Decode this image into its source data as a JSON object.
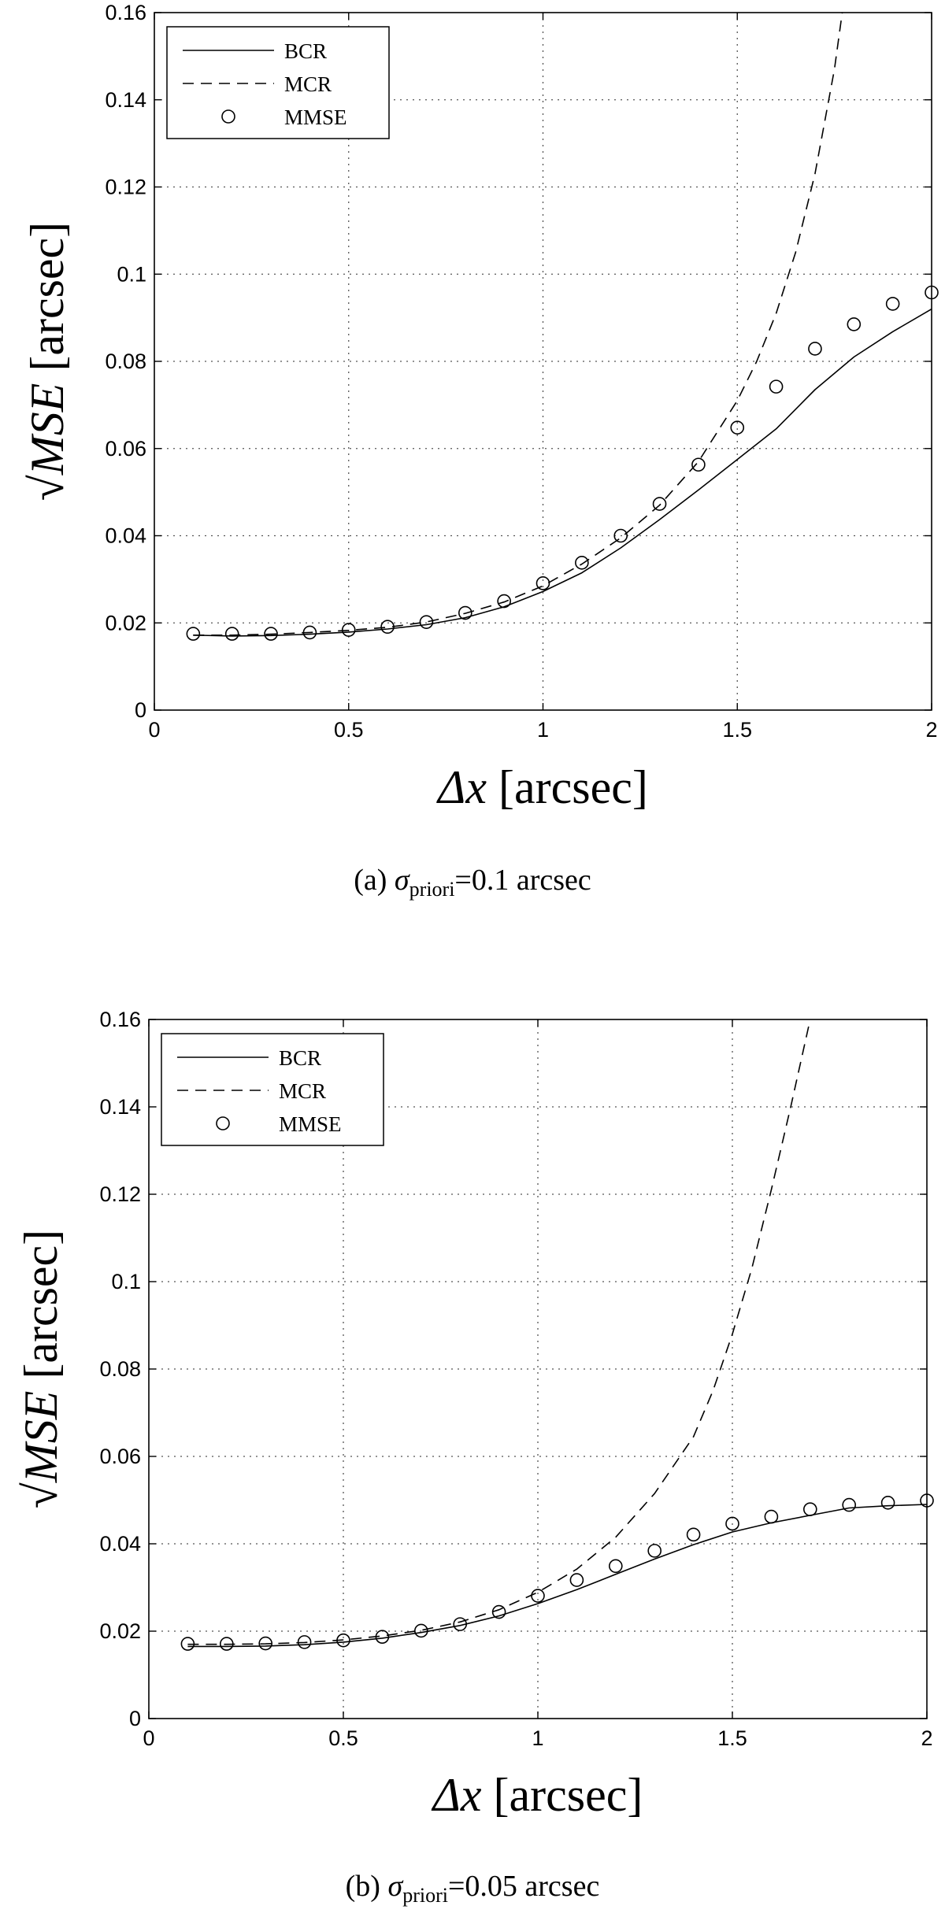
{
  "chart_data": [
    {
      "type": "line",
      "title": "",
      "caption": {
        "label": "(a)",
        "symbol": "σ",
        "subscript": "priori",
        "value": "=0.1 arcsec"
      },
      "xlabel": {
        "symbol": "Δx",
        "unit": "[arcsec]"
      },
      "ylabel": {
        "symbol": "√MSE",
        "unit": "[arcsec]"
      },
      "xlim": [
        0,
        2
      ],
      "ylim": [
        0,
        0.16
      ],
      "xticks": [
        0,
        0.5,
        1,
        1.5,
        2
      ],
      "xtick_labels": [
        "0",
        "0.5",
        "1",
        "1.5",
        "2"
      ],
      "yticks": [
        0,
        0.02,
        0.04,
        0.06,
        0.08,
        0.1,
        0.12,
        0.14,
        0.16
      ],
      "ytick_labels": [
        "0",
        "0.02",
        "0.04",
        "0.06",
        "0.08",
        "0.1",
        "0.12",
        "0.14",
        "0.16"
      ],
      "grid": true,
      "legend": {
        "position": "top-left",
        "entries": [
          "BCR",
          "MCR",
          "MMSE"
        ]
      },
      "series": [
        {
          "name": "BCR",
          "style": "solid",
          "x": [
            0.1,
            0.2,
            0.3,
            0.4,
            0.5,
            0.6,
            0.7,
            0.8,
            0.9,
            1.0,
            1.1,
            1.2,
            1.3,
            1.4,
            1.5,
            1.6,
            1.7,
            1.8,
            1.9,
            2.0
          ],
          "y": [
            0.0172,
            0.017,
            0.0171,
            0.0174,
            0.0179,
            0.0186,
            0.0196,
            0.0212,
            0.0237,
            0.0272,
            0.0315,
            0.0372,
            0.0437,
            0.0505,
            0.0575,
            0.0645,
            0.0735,
            0.081,
            0.0868,
            0.092
          ]
        },
        {
          "name": "MCR",
          "style": "dashed",
          "x": [
            0.1,
            0.2,
            0.3,
            0.4,
            0.5,
            0.6,
            0.7,
            0.8,
            0.9,
            1.0,
            1.1,
            1.2,
            1.3,
            1.4,
            1.5,
            1.55,
            1.6,
            1.65,
            1.7,
            1.75,
            1.77
          ],
          "y": [
            0.0172,
            0.0172,
            0.0174,
            0.0178,
            0.0183,
            0.019,
            0.0202,
            0.0222,
            0.0248,
            0.0285,
            0.0335,
            0.0395,
            0.047,
            0.057,
            0.071,
            0.08,
            0.091,
            0.105,
            0.123,
            0.147,
            0.16
          ]
        },
        {
          "name": "MMSE",
          "style": "markers",
          "x": [
            0.1,
            0.2,
            0.3,
            0.4,
            0.5,
            0.6,
            0.7,
            0.8,
            0.9,
            1.0,
            1.1,
            1.2,
            1.3,
            1.4,
            1.5,
            1.6,
            1.7,
            1.8,
            1.9,
            2.0
          ],
          "y": [
            0.0175,
            0.0175,
            0.0175,
            0.0178,
            0.0184,
            0.0191,
            0.0202,
            0.0223,
            0.025,
            0.0291,
            0.0338,
            0.04,
            0.0473,
            0.0563,
            0.0648,
            0.0742,
            0.0829,
            0.0885,
            0.0932,
            0.0958
          ]
        }
      ]
    },
    {
      "type": "line",
      "title": "",
      "caption": {
        "label": "(b)",
        "symbol": "σ",
        "subscript": "priori",
        "value": "=0.05 arcsec"
      },
      "xlabel": {
        "symbol": "Δx",
        "unit": "[arcsec]"
      },
      "ylabel": {
        "symbol": "√MSE",
        "unit": "[arcsec]"
      },
      "xlim": [
        0,
        2
      ],
      "ylim": [
        0,
        0.16
      ],
      "xticks": [
        0,
        0.5,
        1,
        1.5,
        2
      ],
      "xtick_labels": [
        "0",
        "0.5",
        "1",
        "1.5",
        "2"
      ],
      "yticks": [
        0,
        0.02,
        0.04,
        0.06,
        0.08,
        0.1,
        0.12,
        0.14,
        0.16
      ],
      "ytick_labels": [
        "0",
        "0.02",
        "0.04",
        "0.06",
        "0.08",
        "0.1",
        "0.12",
        "0.14",
        "0.16"
      ],
      "grid": true,
      "legend": {
        "position": "top-left",
        "entries": [
          "BCR",
          "MCR",
          "MMSE"
        ]
      },
      "series": [
        {
          "name": "BCR",
          "style": "solid",
          "x": [
            0.1,
            0.2,
            0.3,
            0.4,
            0.5,
            0.6,
            0.7,
            0.8,
            0.9,
            1.0,
            1.1,
            1.2,
            1.3,
            1.4,
            1.5,
            1.6,
            1.7,
            1.8,
            1.9,
            2.0
          ],
          "y": [
            0.0165,
            0.0165,
            0.0166,
            0.0169,
            0.0175,
            0.0184,
            0.0197,
            0.0213,
            0.0235,
            0.0263,
            0.0295,
            0.033,
            0.0365,
            0.0398,
            0.0427,
            0.0448,
            0.0465,
            0.0482,
            0.0487,
            0.049
          ]
        },
        {
          "name": "MCR",
          "style": "dashed",
          "x": [
            0.1,
            0.2,
            0.3,
            0.4,
            0.5,
            0.6,
            0.7,
            0.8,
            0.9,
            1.0,
            1.1,
            1.2,
            1.3,
            1.4,
            1.45,
            1.5,
            1.55,
            1.6,
            1.65,
            1.7
          ],
          "y": [
            0.017,
            0.017,
            0.0171,
            0.0174,
            0.018,
            0.0189,
            0.0202,
            0.0221,
            0.0249,
            0.0289,
            0.0342,
            0.0415,
            0.0515,
            0.0645,
            0.075,
            0.088,
            0.103,
            0.121,
            0.14,
            0.16
          ]
        },
        {
          "name": "MMSE",
          "style": "markers",
          "x": [
            0.1,
            0.2,
            0.3,
            0.4,
            0.5,
            0.6,
            0.7,
            0.8,
            0.9,
            1.0,
            1.1,
            1.2,
            1.3,
            1.4,
            1.5,
            1.6,
            1.7,
            1.8,
            1.9,
            2.0
          ],
          "y": [
            0.0171,
            0.0171,
            0.0172,
            0.0175,
            0.0179,
            0.0187,
            0.0201,
            0.0216,
            0.0244,
            0.0281,
            0.0317,
            0.0349,
            0.0384,
            0.0421,
            0.0446,
            0.0462,
            0.0479,
            0.0489,
            0.0494,
            0.0499
          ]
        }
      ]
    }
  ]
}
